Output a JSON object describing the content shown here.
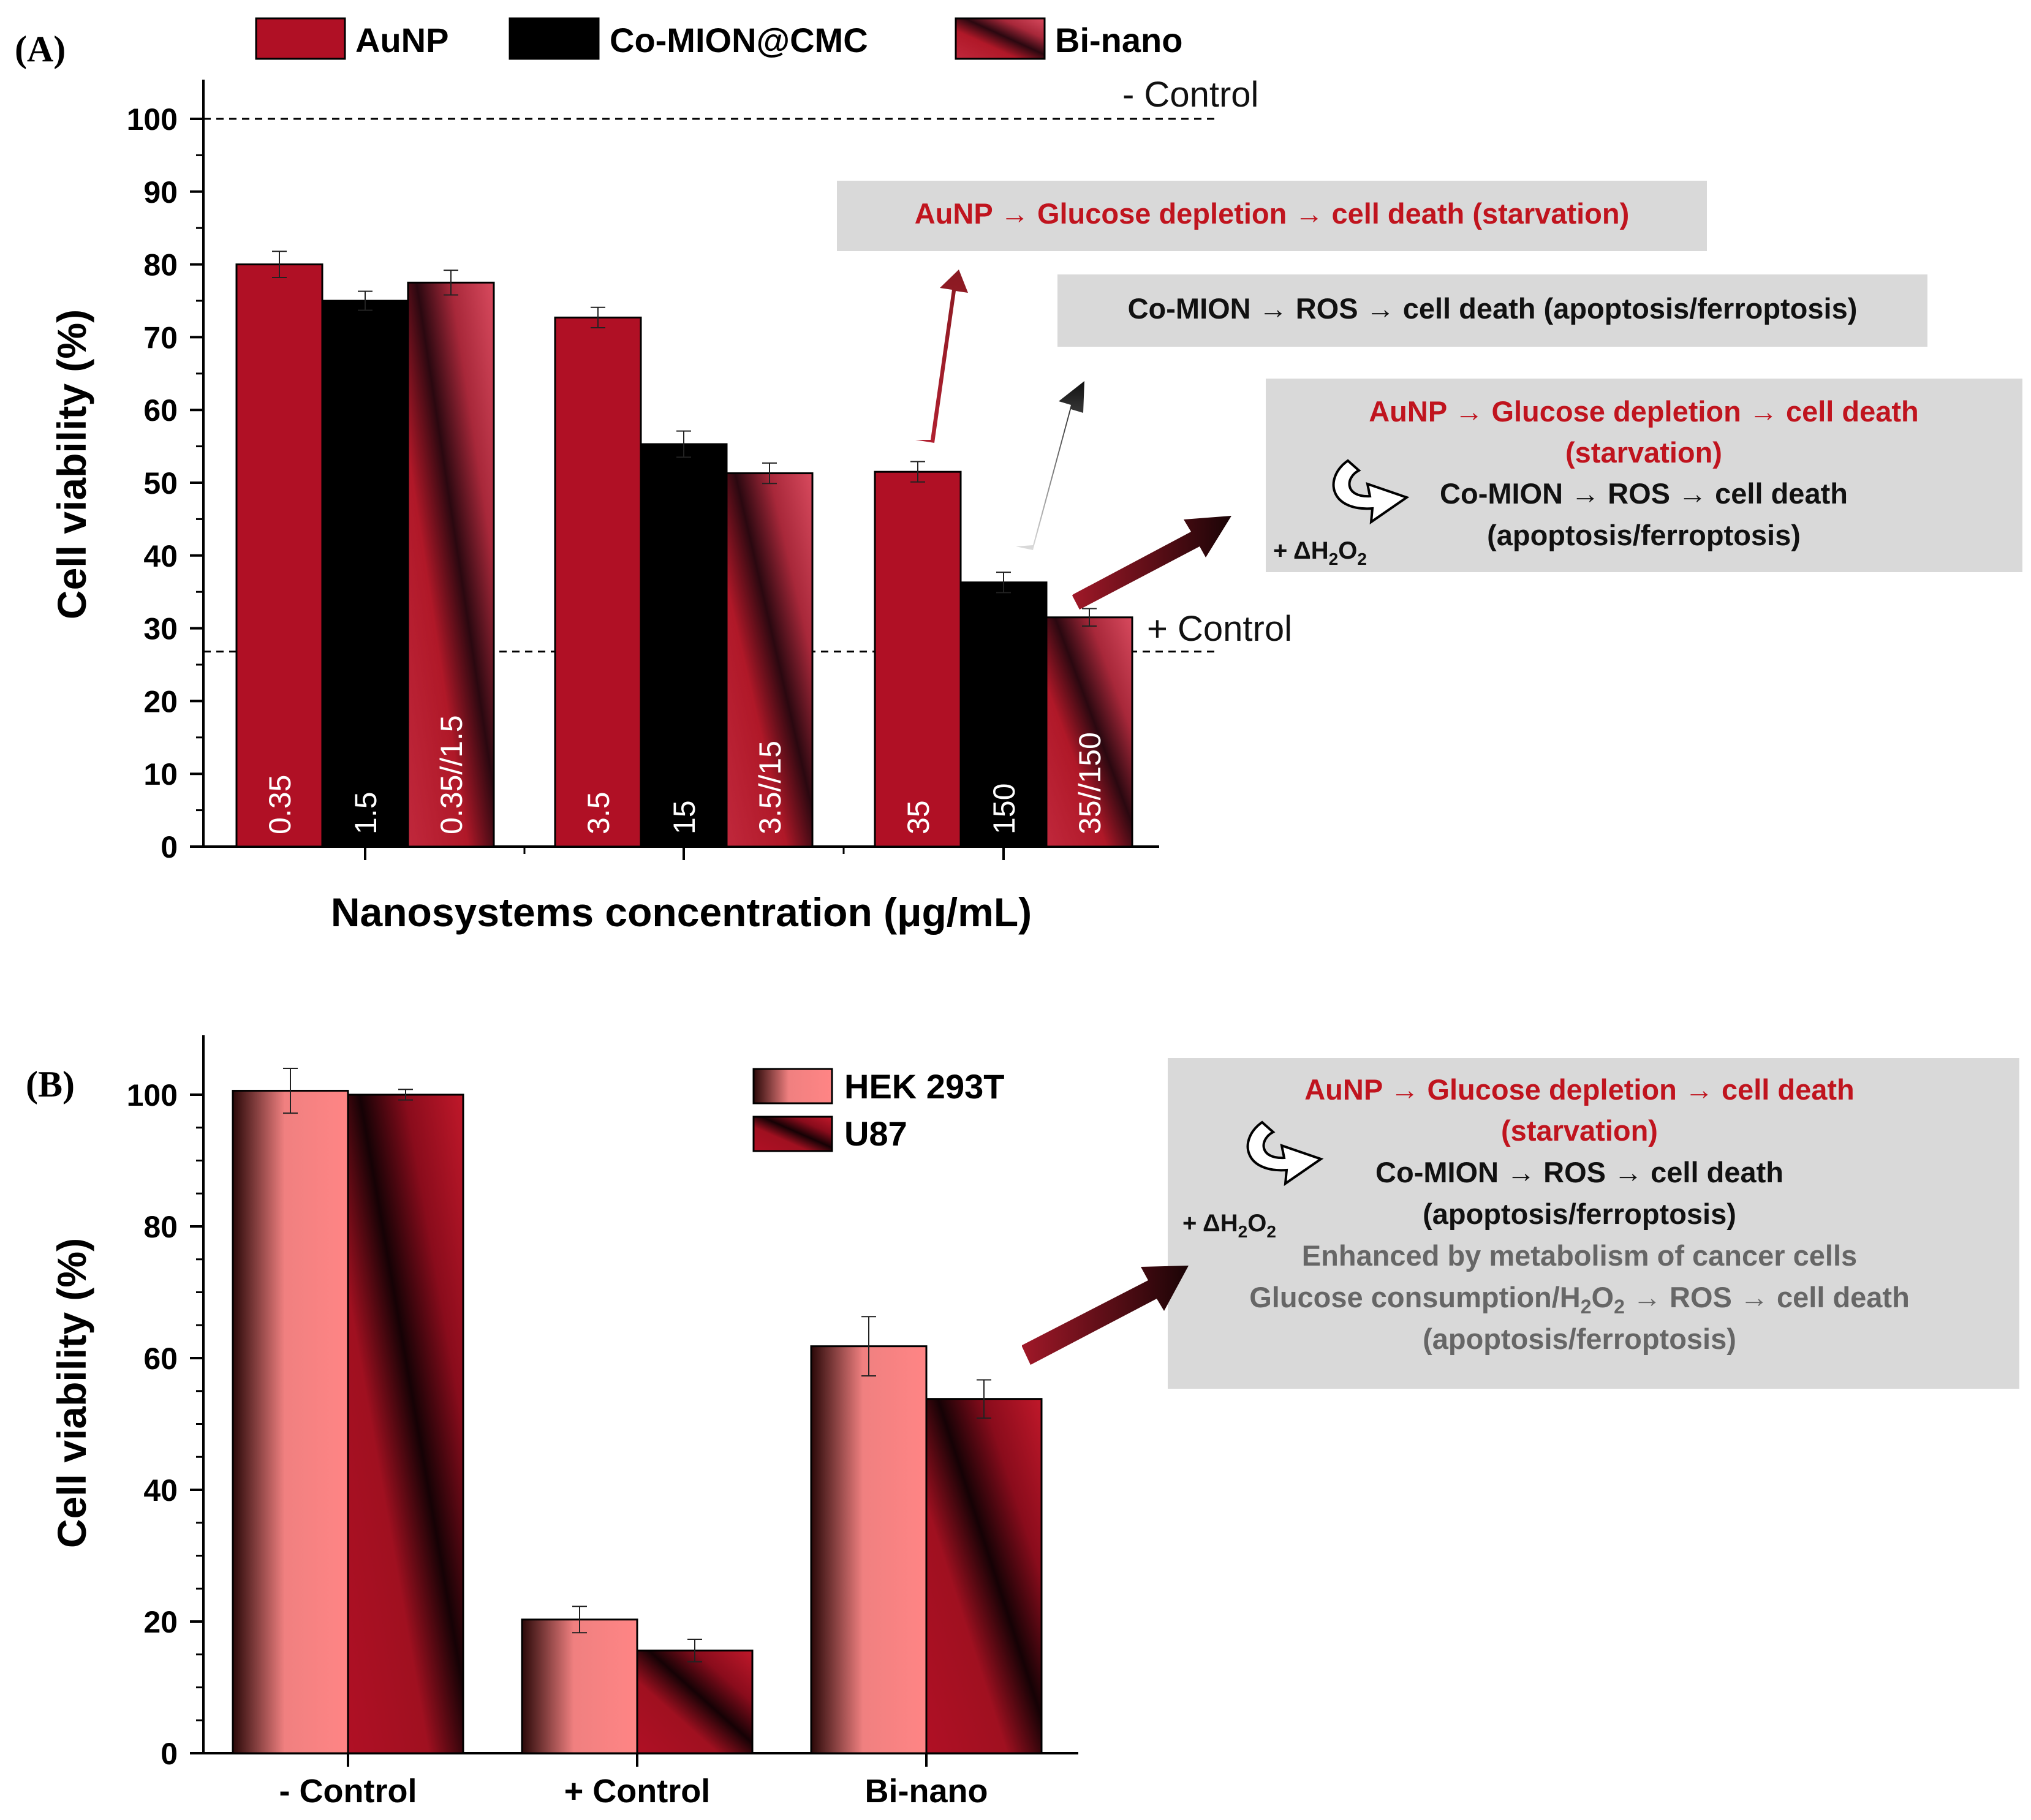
{
  "panel_a": {
    "label": "(A)",
    "legend": [
      {
        "name": "AuNP",
        "style": "aunp"
      },
      {
        "name": "Co-MION@CMC",
        "style": "comion"
      },
      {
        "name": "Bi-nano",
        "style": "binano"
      }
    ],
    "reference_lines": {
      "neg_label": "- Control",
      "neg_value": 100,
      "pos_label": "+ Control",
      "pos_value": 26.8
    },
    "annotations": {
      "box1": "AuNP → Glucose depletion → cell death (starvation)",
      "box2": "Co-MION → ROS → cell death (apoptosis/ferroptosis)",
      "box3_line1": "AuNP → Glucose depletion → cell death",
      "box3_line2": "(starvation)",
      "box3_line3": "Co-MION → ROS → cell death",
      "box3_line4": "(apoptosis/ferroptosis)",
      "h2o2_prefix": "+ ΔH",
      "h2o2_o": "O"
    }
  },
  "panel_b": {
    "label": "(B)",
    "legend": [
      {
        "name": "HEK 293T",
        "style": "hek"
      },
      {
        "name": "U87",
        "style": "u87"
      }
    ],
    "annotations": {
      "line1": "AuNP → Glucose depletion → cell death",
      "line2": "(starvation)",
      "line3": "Co-MION → ROS → cell death",
      "line4": "(apoptosis/ferroptosis)",
      "line5": "Enhanced by metabolism of cancer cells",
      "line6_a": "Glucose consumption/H",
      "line6_b": "O",
      "line6_c": " → ROS → cell death",
      "line7": "(apoptosis/ferroptosis)",
      "h2o2_prefix": "+ ΔH",
      "h2o2_o": "O"
    }
  },
  "chart_data": [
    {
      "type": "bar",
      "panel": "A",
      "title": "",
      "xlabel": "Nanosystems concentration (μg/mL)",
      "ylabel": "Cell viability (%)",
      "ylim": [
        0,
        105
      ],
      "yticks": [
        0,
        10,
        20,
        30,
        40,
        50,
        60,
        70,
        80,
        90,
        100
      ],
      "groups": [
        {
          "bars": [
            {
              "series": "AuNP",
              "label": "0.35",
              "value": 80.0,
              "err": 1.8
            },
            {
              "series": "Co-MION@CMC",
              "label": "1.5",
              "value": 75.0,
              "err": 1.3
            },
            {
              "series": "Bi-nano",
              "label": "0.35//1.5",
              "value": 77.5,
              "err": 1.7
            }
          ]
        },
        {
          "bars": [
            {
              "series": "AuNP",
              "label": "3.5",
              "value": 72.7,
              "err": 1.4
            },
            {
              "series": "Co-MION@CMC",
              "label": "15",
              "value": 55.3,
              "err": 1.8
            },
            {
              "series": "Bi-nano",
              "label": "3.5//15",
              "value": 51.3,
              "err": 1.4
            }
          ]
        },
        {
          "bars": [
            {
              "series": "AuNP",
              "label": "35",
              "value": 51.5,
              "err": 1.4
            },
            {
              "series": "Co-MION@CMC",
              "label": "150",
              "value": 36.3,
              "err": 1.4
            },
            {
              "series": "Bi-nano",
              "label": "35//150",
              "value": 31.5,
              "err": 1.2
            }
          ]
        }
      ]
    },
    {
      "type": "bar",
      "panel": "B",
      "title": "",
      "xlabel": "",
      "ylabel": "Cell viability (%)",
      "ylim": [
        0,
        105
      ],
      "yticks": [
        0,
        20,
        40,
        60,
        80,
        100
      ],
      "categories": [
        "- Control",
        "+ Control",
        "Bi-nano"
      ],
      "series": [
        {
          "name": "HEK 293T",
          "values": [
            100.6,
            20.3,
            61.8
          ],
          "errors": [
            3.4,
            2.0,
            4.5
          ]
        },
        {
          "name": "U87",
          "values": [
            100.0,
            15.6,
            53.8
          ],
          "errors": [
            0.8,
            1.7,
            2.9
          ]
        }
      ]
    }
  ]
}
